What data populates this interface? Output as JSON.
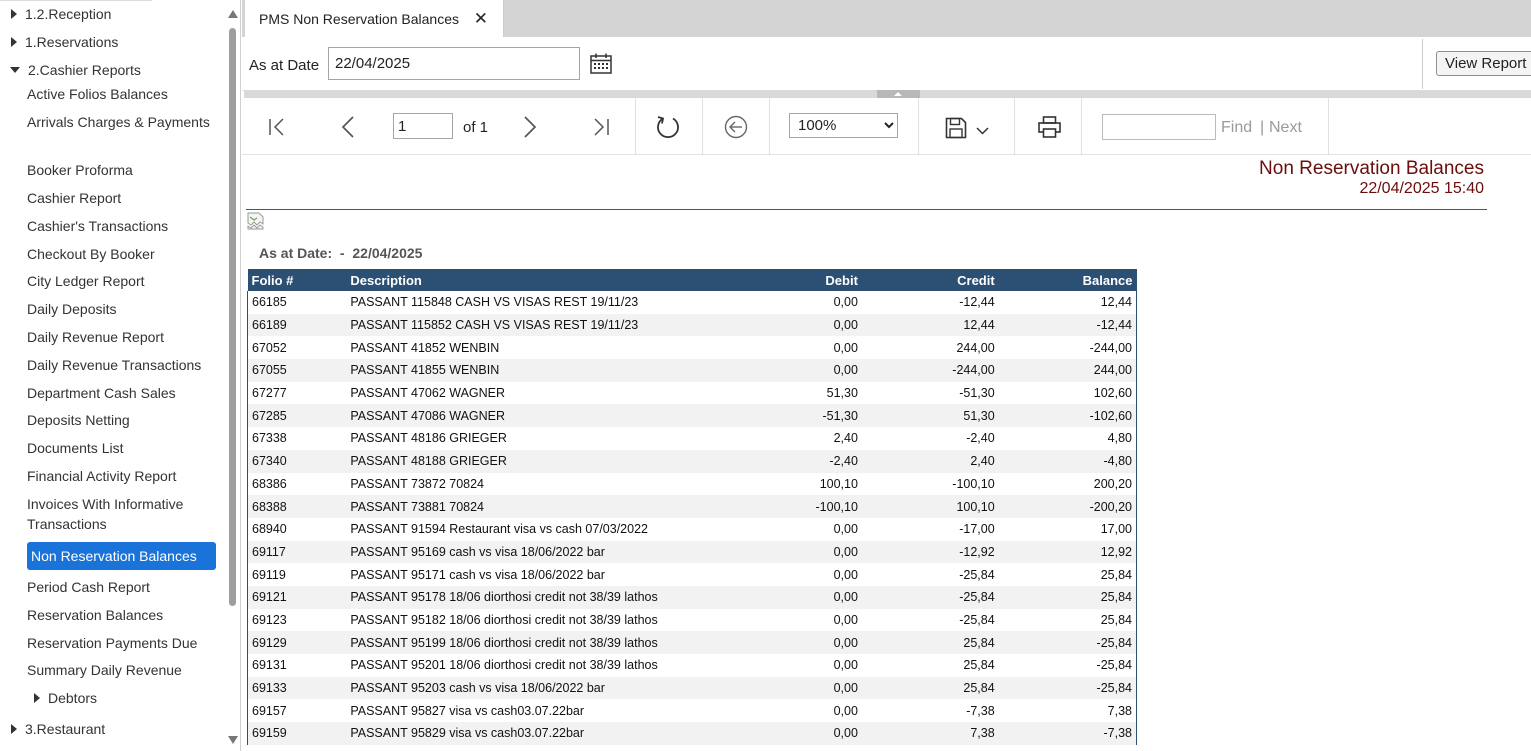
{
  "sidebar": {
    "groups": [
      {
        "label": "1.2.Reception",
        "expanded": false
      },
      {
        "label": "1.Reservations",
        "expanded": false
      },
      {
        "label": "2.Cashier Reports",
        "expanded": true
      },
      {
        "label": "Debtors",
        "expanded": false
      },
      {
        "label": "3.Restaurant",
        "expanded": false
      }
    ],
    "items": [
      "Active Folios Balances",
      "Arrivals Charges & Payments",
      "Booker Proforma",
      "Cashier Report",
      "Cashier's Transactions",
      "Checkout By Booker",
      "City Ledger Report",
      "Daily Deposits",
      "Daily Revenue Report",
      "Daily Revenue Transactions",
      "Department Cash Sales",
      "Deposits Netting",
      "Documents List",
      "Financial Activity Report",
      "Invoices With Informative Transactions",
      "Non Reservation Balances",
      "Period Cash Report",
      "Reservation Balances",
      "Reservation Payments Due",
      "Summary Daily Revenue"
    ],
    "selected": "Non Reservation Balances"
  },
  "tab": {
    "title": "PMS Non Reservation Balances",
    "close": "✕"
  },
  "params": {
    "as_at_label": "As at Date",
    "as_at_value": "22/04/2025",
    "view_report": "View Report"
  },
  "toolbar": {
    "page_value": "1",
    "page_of": "of 1",
    "zoom": "100%",
    "zoom_options": [
      "100%"
    ],
    "find_label": "Find",
    "separator": "|",
    "next_label": "Next",
    "icons": [
      "first-page-icon",
      "prev-page-icon",
      "next-page-icon",
      "last-page-icon",
      "refresh-icon",
      "back-icon",
      "save-icon",
      "print-icon"
    ]
  },
  "report": {
    "title": "Non Reservation Balances",
    "datetime": "22/04/2025 15:40",
    "as_at_label": "As at Date:",
    "as_at_sep": "-",
    "as_at_value": "22/04/2025",
    "columns": [
      "Folio #",
      "Description",
      "Debit",
      "Credit",
      "Balance"
    ],
    "rows": [
      [
        "66185",
        "PASSANT 115848  CASH VS VISAS REST 19/11/23",
        "0,00",
        "-12,44",
        "12,44"
      ],
      [
        "66189",
        "PASSANT 115852  CASH VS VISAS REST 19/11/23",
        "0,00",
        "12,44",
        "-12,44"
      ],
      [
        "67052",
        "PASSANT 41852  WENBIN",
        "0,00",
        "244,00",
        "-244,00"
      ],
      [
        "67055",
        "PASSANT 41855  WENBIN",
        "0,00",
        "-244,00",
        "244,00"
      ],
      [
        "67277",
        "PASSANT 47062  WAGNER",
        "51,30",
        "-51,30",
        "102,60"
      ],
      [
        "67285",
        "PASSANT 47086  WAGNER",
        "-51,30",
        "51,30",
        "-102,60"
      ],
      [
        "67338",
        "PASSANT 48186  GRIEGER",
        "2,40",
        "-2,40",
        "4,80"
      ],
      [
        "67340",
        "PASSANT 48188  GRIEGER",
        "-2,40",
        "2,40",
        "-4,80"
      ],
      [
        "68386",
        "PASSANT 73872  70824",
        "100,10",
        "-100,10",
        "200,20"
      ],
      [
        "68388",
        "PASSANT 73881  70824",
        "-100,10",
        "100,10",
        "-200,20"
      ],
      [
        "68940",
        "PASSANT 91594  Restaurant visa vs cash 07/03/2022",
        "0,00",
        "-17,00",
        "17,00"
      ],
      [
        "69117",
        "PASSANT 95169  cash vs visa 18/06/2022 bar",
        "0,00",
        "-12,92",
        "12,92"
      ],
      [
        "69119",
        "PASSANT 95171  cash vs visa 18/06/2022 bar",
        "0,00",
        "-25,84",
        "25,84"
      ],
      [
        "69121",
        "PASSANT 95178  18/06 diorthosi credit not 38/39 lathos",
        "0,00",
        "-25,84",
        "25,84"
      ],
      [
        "69123",
        "PASSANT 95182  18/06 diorthosi credit not 38/39 lathos",
        "0,00",
        "-25,84",
        "25,84"
      ],
      [
        "69129",
        "PASSANT 95199  18/06 diorthosi credit not 38/39 lathos",
        "0,00",
        "25,84",
        "-25,84"
      ],
      [
        "69131",
        "PASSANT 95201  18/06 diorthosi credit not 38/39 lathos",
        "0,00",
        "25,84",
        "-25,84"
      ],
      [
        "69133",
        "PASSANT 95203  cash vs visa 18/06/2022 bar",
        "0,00",
        "25,84",
        "-25,84"
      ],
      [
        "69157",
        "PASSANT 95827  visa vs cash03.07.22bar",
        "0,00",
        "-7,38",
        "7,38"
      ],
      [
        "69159",
        "PASSANT 95829  visa vs cash03.07.22bar",
        "0,00",
        "7,38",
        "-7,38"
      ]
    ]
  },
  "colors": {
    "selected": "#1a73d9",
    "table_header": "#2c4f74",
    "report_title": "#6b0d0d"
  }
}
